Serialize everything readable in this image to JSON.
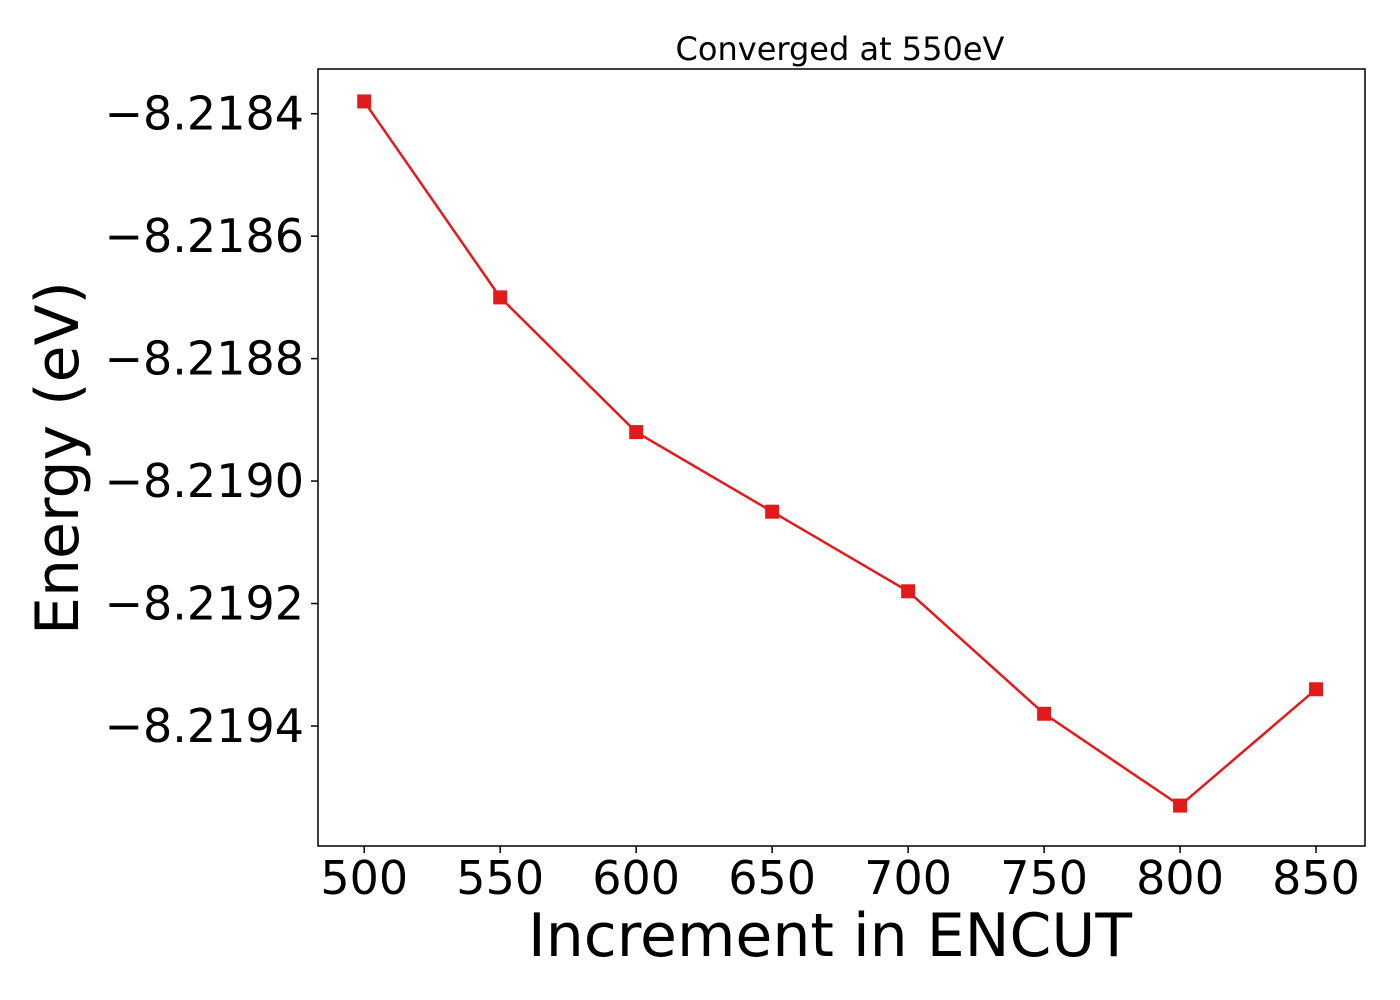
{
  "chart_data": {
    "type": "line",
    "title": "Converged at 550eV",
    "xlabel": "Increment in ENCUT",
    "ylabel": "Energy (eV)",
    "x": [
      500,
      550,
      600,
      650,
      700,
      750,
      800,
      850
    ],
    "series": [
      {
        "values": [
          -8.21838,
          -8.2187,
          -8.21892,
          -8.21905,
          -8.21918,
          -8.21938,
          -8.21953,
          -8.21934
        ],
        "color": "#e31a1c",
        "marker": "square"
      }
    ],
    "xticks": [
      500,
      550,
      600,
      650,
      700,
      750,
      800,
      850
    ],
    "xtick_labels": [
      "500",
      "550",
      "600",
      "650",
      "700",
      "750",
      "800",
      "850"
    ],
    "yticks": [
      -8.2184,
      -8.2186,
      -8.2188,
      -8.219,
      -8.2192,
      -8.2194
    ],
    "ytick_labels": [
      "−8.2184",
      "−8.2186",
      "−8.2188",
      "−8.2190",
      "−8.2192",
      "−8.2194"
    ],
    "xlim": [
      483,
      868
    ],
    "ylim": [
      -8.219596,
      -8.218327
    ],
    "grid": false,
    "legend": "none"
  }
}
